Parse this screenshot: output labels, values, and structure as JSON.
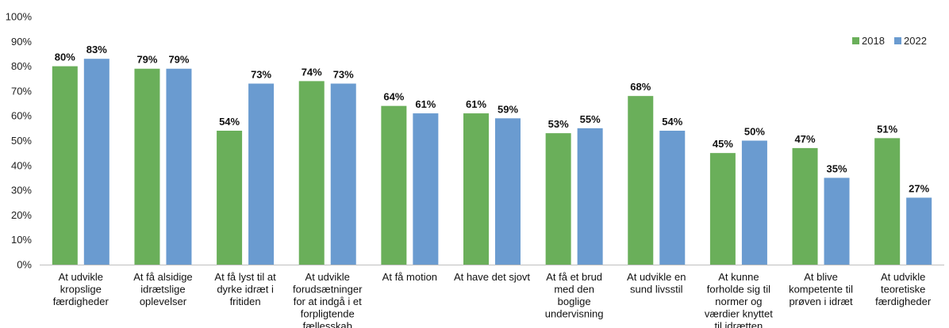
{
  "chart_data": {
    "type": "bar",
    "title": "",
    "xlabel": "",
    "ylabel": "",
    "ylim": [
      0,
      100
    ],
    "yticks": [
      "0%",
      "10%",
      "20%",
      "30%",
      "40%",
      "50%",
      "60%",
      "70%",
      "80%",
      "90%",
      "100%"
    ],
    "value_suffix": "%",
    "legend_position": "top-right",
    "grid": false,
    "categories": [
      [
        "At udvikle",
        "kropslige",
        "færdigheder"
      ],
      [
        "At få alsidige",
        "idrætslige",
        "oplevelser"
      ],
      [
        "At få lyst til at",
        "dyrke idræt i",
        "fritiden"
      ],
      [
        "At udvikle",
        "forudsætninger",
        "for at indgå i et",
        "forpligtende",
        "fællesskab"
      ],
      [
        "At få motion"
      ],
      [
        "At have det sjovt"
      ],
      [
        "At få et brud",
        "med den",
        "boglige",
        "undervisning"
      ],
      [
        "At udvikle en",
        "sund livsstil"
      ],
      [
        "At kunne",
        "forholde sig til",
        "normer og",
        "værdier knyttet",
        "til idrætten"
      ],
      [
        "At blive",
        "kompetente til",
        "prøven i idræt"
      ],
      [
        "At udvikle",
        "teoretiske",
        "færdigheder"
      ]
    ],
    "series": [
      {
        "name": "2018",
        "color": "#6aaf5a",
        "values": [
          80,
          79,
          54,
          74,
          64,
          61,
          53,
          68,
          45,
          47,
          51
        ]
      },
      {
        "name": "2022",
        "color": "#6a9bd0",
        "values": [
          83,
          79,
          73,
          73,
          61,
          59,
          55,
          54,
          50,
          35,
          27
        ]
      }
    ]
  }
}
